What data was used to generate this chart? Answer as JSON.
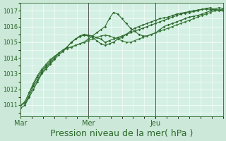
{
  "background_color": "#cce8d8",
  "plot_bg_color": "#d4f0e4",
  "grid_color": "#ffffff",
  "line_color_dark": "#2d6a2d",
  "line_color_med": "#3a7a3a",
  "xlabel": "Pression niveau de la mer( hPa )",
  "xlabel_fontsize": 9,
  "yticks": [
    1011,
    1012,
    1013,
    1014,
    1015,
    1016,
    1017
  ],
  "ylim": [
    1010.3,
    1017.5
  ],
  "xtick_labels": [
    "Mar",
    "Mer",
    "Jeu"
  ],
  "xtick_positions": [
    0,
    0.333,
    0.667
  ],
  "xlim": [
    0.0,
    1.0
  ],
  "vline_positions": [
    0.0,
    0.333,
    0.667
  ],
  "series": [
    [
      1010.8,
      1011.0,
      1011.5,
      1012.0,
      1012.5,
      1013.0,
      1013.3,
      1013.6,
      1013.9,
      1014.2,
      1014.4,
      1014.7,
      1015.0,
      1015.2,
      1015.4,
      1015.5,
      1015.45,
      1015.4,
      1015.3,
      1015.2,
      1015.0,
      1015.1,
      1015.2,
      1015.3,
      1015.4,
      1015.5,
      1015.6,
      1015.7,
      1015.8,
      1015.9,
      1016.0,
      1016.1,
      1016.2,
      1016.3,
      1016.4,
      1016.5,
      1016.6,
      1016.7,
      1016.8,
      1016.85,
      1016.9,
      1016.95,
      1017.0,
      1017.1,
      1017.15,
      1017.2,
      1017.1,
      1017.05,
      1017.0
    ],
    [
      1011.0,
      1011.1,
      1011.6,
      1012.2,
      1012.6,
      1013.1,
      1013.4,
      1013.7,
      1014.0,
      1014.3,
      1014.5,
      1014.7,
      1015.0,
      1015.2,
      1015.35,
      1015.45,
      1015.4,
      1015.3,
      1015.1,
      1014.9,
      1014.8,
      1014.9,
      1015.0,
      1015.2,
      1015.3,
      1015.5,
      1015.7,
      1015.9,
      1016.0,
      1016.1,
      1016.2,
      1016.3,
      1016.4,
      1016.5,
      1016.55,
      1016.6,
      1016.7,
      1016.8,
      1016.85,
      1016.9,
      1016.95,
      1017.0,
      1017.05,
      1017.1,
      1017.1,
      1017.1,
      1017.05,
      1017.0,
      1017.0
    ],
    [
      1011.0,
      1011.2,
      1011.8,
      1012.3,
      1012.8,
      1013.2,
      1013.5,
      1013.8,
      1014.1,
      1014.3,
      1014.5,
      1014.6,
      1014.7,
      1014.8,
      1014.9,
      1015.0,
      1015.2,
      1015.4,
      1015.6,
      1015.8,
      1016.0,
      1016.5,
      1016.9,
      1016.8,
      1016.5,
      1016.2,
      1015.9,
      1015.7,
      1015.5,
      1015.4,
      1015.4,
      1015.5,
      1015.6,
      1015.8,
      1016.0,
      1016.1,
      1016.2,
      1016.3,
      1016.4,
      1016.5,
      1016.6,
      1016.65,
      1016.7,
      1016.8,
      1016.9,
      1017.0,
      1017.1,
      1017.2,
      1017.15
    ],
    [
      1011.0,
      1011.2,
      1011.8,
      1012.4,
      1012.9,
      1013.3,
      1013.6,
      1013.9,
      1014.1,
      1014.3,
      1014.5,
      1014.6,
      1014.7,
      1014.8,
      1014.9,
      1015.0,
      1015.1,
      1015.2,
      1015.3,
      1015.4,
      1015.45,
      1015.4,
      1015.3,
      1015.2,
      1015.1,
      1015.0,
      1015.0,
      1015.1,
      1015.2,
      1015.3,
      1015.4,
      1015.5,
      1015.6,
      1015.7,
      1015.8,
      1015.9,
      1016.0,
      1016.1,
      1016.2,
      1016.3,
      1016.4,
      1016.5,
      1016.6,
      1016.7,
      1016.8,
      1016.9,
      1017.0,
      1017.05,
      1017.1
    ]
  ]
}
